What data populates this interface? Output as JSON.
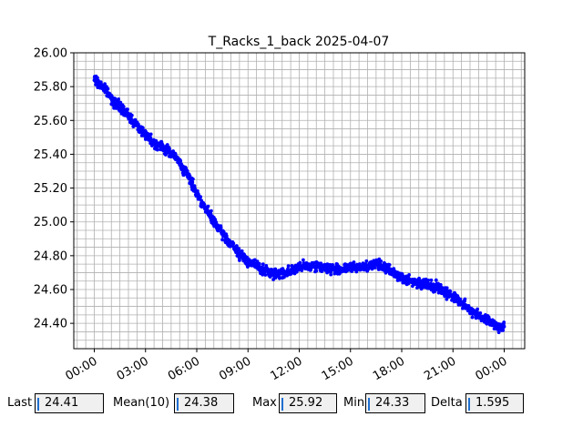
{
  "chart_data": {
    "type": "scatter",
    "title": "T_Racks_1_back 2025-04-07",
    "xlabel": "",
    "ylabel": "",
    "x_tick_labels": [
      "00:00",
      "03:00",
      "06:00",
      "09:00",
      "12:00",
      "15:00",
      "18:00",
      "21:00",
      "00:00"
    ],
    "x_tick_hours": [
      0,
      3,
      6,
      9,
      12,
      15,
      18,
      21,
      24
    ],
    "xlim_hours": [
      -1.2,
      25.2
    ],
    "y_tick_labels": [
      "24.40",
      "24.60",
      "24.80",
      "25.00",
      "25.20",
      "25.40",
      "25.60",
      "25.80",
      "26.00"
    ],
    "y_ticks": [
      24.4,
      24.6,
      24.8,
      25.0,
      25.2,
      25.4,
      25.6,
      25.8,
      26.0
    ],
    "ylim": [
      24.25,
      26.0
    ],
    "grid": true,
    "marker_color": "#0000ff",
    "series": [
      {
        "x_hours": [
          0.0,
          0.5,
          1.0,
          1.5,
          2.0,
          2.5,
          3.0,
          3.5,
          4.0,
          4.5,
          5.0,
          5.5,
          6.0,
          6.5,
          7.0,
          7.5,
          8.0,
          8.5,
          9.0,
          9.5,
          10.0,
          10.5,
          11.0,
          11.5,
          12.0,
          12.5,
          13.0,
          13.5,
          14.0,
          14.5,
          15.0,
          15.5,
          16.0,
          16.5,
          17.0,
          17.5,
          18.0,
          18.5,
          19.0,
          19.5,
          20.0,
          20.5,
          21.0,
          21.5,
          22.0,
          22.5,
          23.0,
          23.5,
          24.0
        ],
        "values": [
          25.84,
          25.8,
          25.73,
          25.68,
          25.63,
          25.57,
          25.52,
          25.47,
          25.44,
          25.41,
          25.35,
          25.27,
          25.17,
          25.08,
          25.0,
          24.93,
          24.87,
          24.81,
          24.77,
          24.74,
          24.71,
          24.69,
          24.7,
          24.71,
          24.73,
          24.74,
          24.74,
          24.73,
          24.72,
          24.72,
          24.73,
          24.73,
          24.74,
          24.75,
          24.73,
          24.7,
          24.67,
          24.65,
          24.64,
          24.63,
          24.62,
          24.59,
          24.56,
          24.52,
          24.48,
          24.45,
          24.42,
          24.39,
          24.37
        ]
      }
    ]
  },
  "stats": {
    "last_label": "Last",
    "last_value": "24.41",
    "mean_label": "Mean(10)",
    "mean_value": "24.38",
    "max_label": "Max",
    "max_value": "25.92",
    "min_label": "Min",
    "min_value": "24.33",
    "delta_label": "Delta",
    "delta_value": "1.595"
  }
}
